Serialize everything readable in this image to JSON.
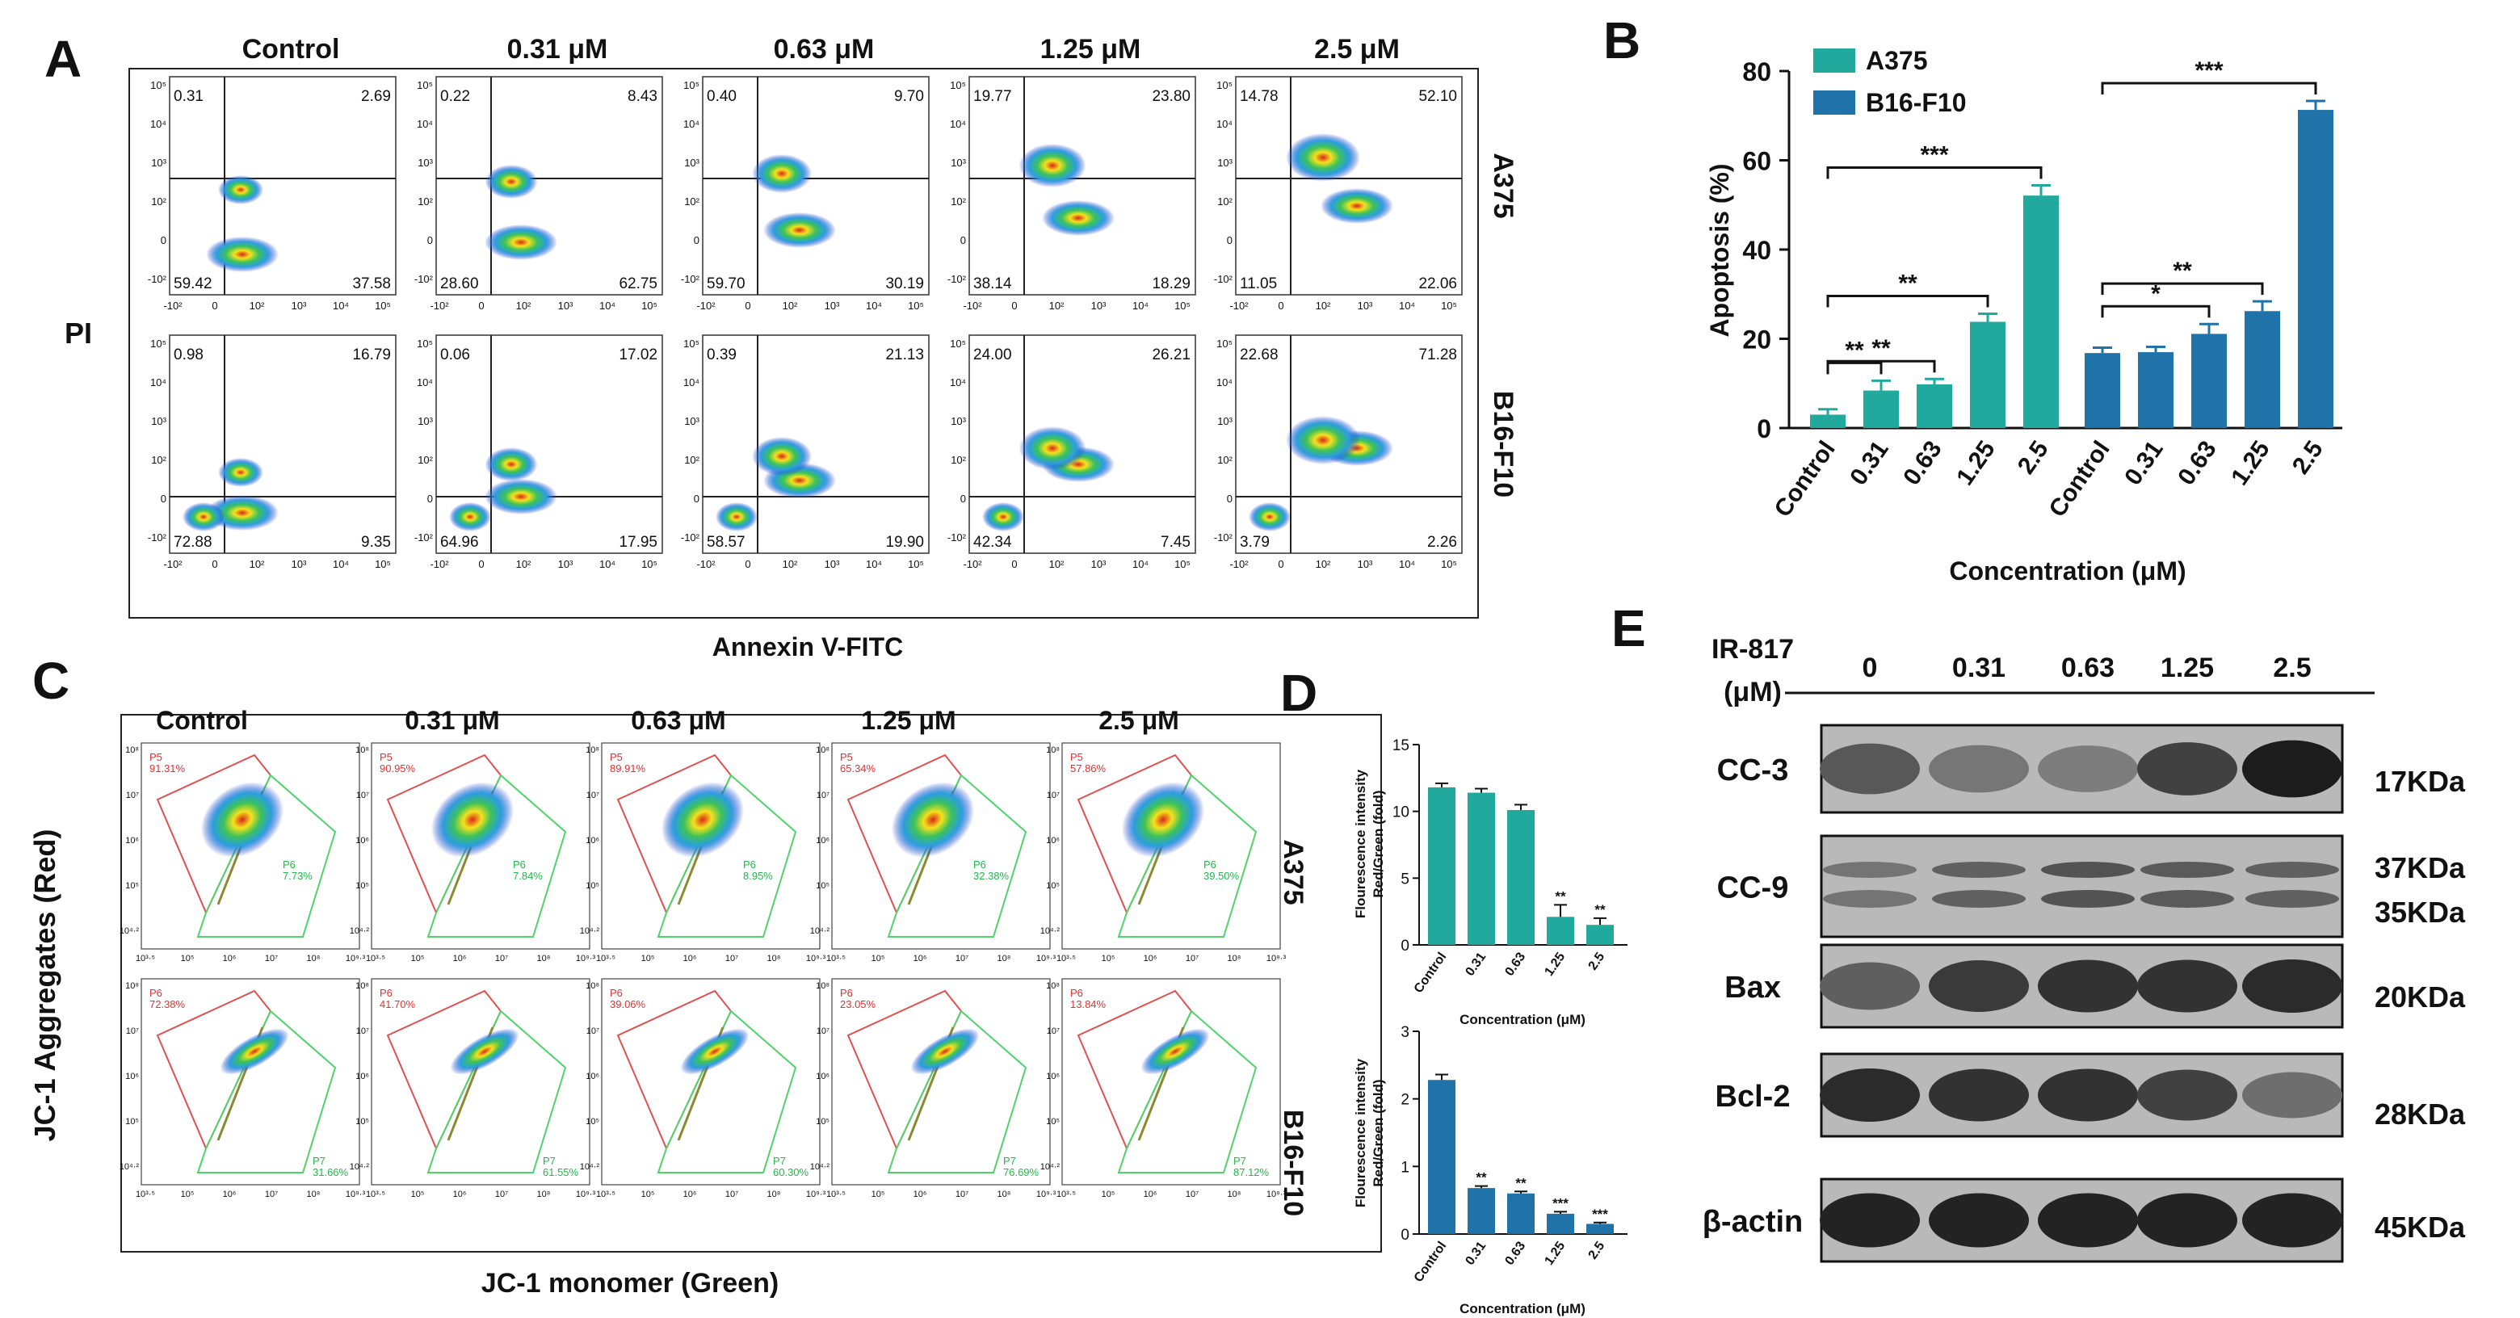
{
  "panel_letters": {
    "A": "A",
    "B": "B",
    "C": "C",
    "D": "D",
    "E": "E"
  },
  "concentrations": [
    "Control",
    "0.31 μM",
    "0.63 μM",
    "1.25 μM",
    "2.5 μM"
  ],
  "cell_lines": [
    "A375",
    "B16-F10"
  ],
  "colors": {
    "A375": "#21a99e",
    "B16": "#1f73a8"
  },
  "panelA": {
    "y_label": "PI",
    "x_label": "Annexin  V-FITC",
    "x_ticks": [
      "-10²",
      "0",
      "10²",
      "10³",
      "10⁴",
      "10⁵"
    ],
    "y_ticks": [
      "10⁵",
      "10⁴",
      "10³",
      "10²",
      "0",
      "-10²"
    ],
    "quadrants": {
      "A375": [
        [
          "0.31",
          "2.69",
          "59.42",
          "37.58"
        ],
        [
          "0.22",
          "8.43",
          "28.60",
          "62.75"
        ],
        [
          "0.40",
          "9.70",
          "59.70",
          "30.19"
        ],
        [
          "19.77",
          "23.80",
          "38.14",
          "18.29"
        ],
        [
          "14.78",
          "52.10",
          "11.05",
          "22.06"
        ]
      ],
      "B16": [
        [
          "0.98",
          "16.79",
          "72.88",
          "9.35"
        ],
        [
          "0.06",
          "17.02",
          "64.96",
          "17.95"
        ],
        [
          "0.39",
          "21.13",
          "58.57",
          "19.90"
        ],
        [
          "24.00",
          "26.21",
          "42.34",
          "7.45"
        ],
        [
          "22.68",
          "71.28",
          "3.79",
          "2.26"
        ]
      ]
    }
  },
  "panelC": {
    "y_label": "JC-1 Aggregates (Red)",
    "x_label": "JC-1 monomer (Green)",
    "x_ticks": [
      "10³·⁵",
      "10⁵",
      "10⁶",
      "10⁷",
      "10⁸",
      "10⁹·³"
    ],
    "y_ticks": [
      "10⁸",
      "10⁷",
      "10⁶",
      "10⁵",
      "10⁴·²"
    ],
    "gates": {
      "A375": [
        [
          "P5",
          "91.31%",
          "P6",
          "7.73%"
        ],
        [
          "P5",
          "90.95%",
          "P6",
          "7.84%"
        ],
        [
          "P5",
          "89.91%",
          "P6",
          "8.95%"
        ],
        [
          "P5",
          "65.34%",
          "P6",
          "32.38%"
        ],
        [
          "P5",
          "57.86%",
          "P6",
          "39.50%"
        ]
      ],
      "B16": [
        [
          "P6",
          "72.38%",
          "P7",
          "31.66%"
        ],
        [
          "P6",
          "41.70%",
          "P7",
          "61.55%"
        ],
        [
          "P6",
          "39.06%",
          "P7",
          "60.30%"
        ],
        [
          "P6",
          "23.05%",
          "P7",
          "76.69%"
        ],
        [
          "P6",
          "13.84%",
          "P7",
          "87.12%"
        ]
      ]
    }
  },
  "panelE": {
    "header_line1": "IR-817",
    "header_line2": "(μM)",
    "lanes": [
      "0",
      "0.31",
      "0.63",
      "1.25",
      "2.5"
    ],
    "blots": [
      {
        "name": "CC-3",
        "kda": [
          "17KDa"
        ],
        "intensity": [
          0.55,
          0.35,
          0.3,
          0.7,
          0.95
        ]
      },
      {
        "name": "CC-9",
        "kda": [
          "37KDa",
          "35KDa"
        ],
        "intensity": [
          0.45,
          0.6,
          0.7,
          0.65,
          0.6
        ]
      },
      {
        "name": "Bax",
        "kda": [
          "20KDa"
        ],
        "intensity": [
          0.5,
          0.75,
          0.8,
          0.8,
          0.85
        ]
      },
      {
        "name": "Bcl-2",
        "kda": [
          "28KDa"
        ],
        "intensity": [
          0.85,
          0.8,
          0.8,
          0.7,
          0.4
        ]
      },
      {
        "name": "β-actin",
        "kda": [
          "45KDa"
        ],
        "intensity": [
          0.9,
          0.9,
          0.9,
          0.9,
          0.9
        ]
      }
    ]
  },
  "chart_data": [
    {
      "type": "bar",
      "ylabel": "Apoptosis (%)",
      "xlabel": "Concentration (μM)",
      "ylim": [
        0,
        80
      ],
      "yticks": [
        0,
        20,
        40,
        60,
        80
      ],
      "categories": [
        "Control",
        "0.31",
        "0.63",
        "1.25",
        "2.5"
      ],
      "legend": "top-left",
      "series": [
        {
          "name": "A375",
          "values": [
            3,
            8.4,
            9.8,
            23.8,
            52.1
          ],
          "errors": [
            1.2,
            2.2,
            1.2,
            1.8,
            2.3
          ]
        },
        {
          "name": "B16-F10",
          "values": [
            16.8,
            17,
            21.1,
            26.2,
            71.3
          ],
          "errors": [
            1.2,
            1.2,
            2.2,
            2.2,
            2.0
          ]
        }
      ],
      "significance": {
        "A375": [
          {
            "from": 0,
            "to": 1,
            "label": "**"
          },
          {
            "from": 0,
            "to": 2,
            "label": "**"
          },
          {
            "from": 0,
            "to": 3,
            "label": "**"
          },
          {
            "from": 0,
            "to": 4,
            "label": "***"
          }
        ],
        "B16-F10": [
          {
            "from": 0,
            "to": 2,
            "label": "*"
          },
          {
            "from": 0,
            "to": 3,
            "label": "**"
          },
          {
            "from": 0,
            "to": 4,
            "label": "***"
          }
        ]
      }
    },
    {
      "type": "bar",
      "ylabel_line1": "Flourescence intensity",
      "ylabel_line2": "Red/Green (fold)",
      "xlabel": "Concentration (μM)",
      "ylim": [
        0,
        15
      ],
      "yticks": [
        0,
        5,
        10,
        15
      ],
      "categories": [
        "Control",
        "0.31",
        "0.63",
        "1.25",
        "2.5"
      ],
      "series": [
        {
          "name": "A375",
          "values": [
            11.8,
            11.4,
            10.1,
            2.1,
            1.5
          ],
          "errors": [
            0.3,
            0.3,
            0.4,
            0.9,
            0.5
          ]
        }
      ],
      "stars": [
        "",
        "",
        "",
        "**",
        "**"
      ]
    },
    {
      "type": "bar",
      "ylabel_line1": "Flourescence intensity",
      "ylabel_line2": "Red/Green (fold)",
      "xlabel": "Concentration (μM)",
      "ylim": [
        0,
        3
      ],
      "yticks": [
        0,
        1,
        2,
        3
      ],
      "categories": [
        "Control",
        "0.31",
        "0.63",
        "1.25",
        "2.5"
      ],
      "series": [
        {
          "name": "B16-F10",
          "values": [
            2.28,
            0.68,
            0.6,
            0.3,
            0.15
          ],
          "errors": [
            0.08,
            0.03,
            0.03,
            0.03,
            0.02
          ]
        }
      ],
      "stars": [
        "",
        "**",
        "**",
        "***",
        "***"
      ]
    }
  ]
}
